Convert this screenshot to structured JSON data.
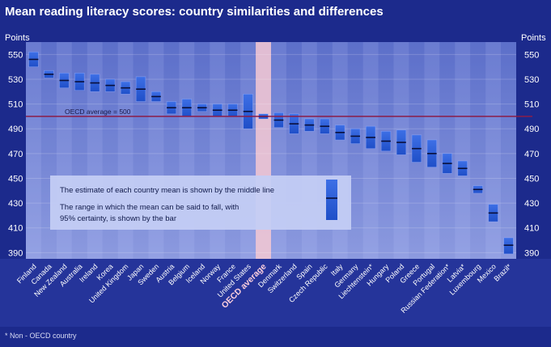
{
  "title": "Mean reading literacy scores: country similarities and differences",
  "footnote": "* Non - OECD country",
  "chart_data": {
    "type": "bar",
    "y_axis_label_left": "Points",
    "y_axis_label_right": "Points",
    "ylim": [
      385,
      560
    ],
    "y_ticks": [
      390,
      410,
      430,
      450,
      470,
      490,
      510,
      530,
      550
    ],
    "reference_line": {
      "label": "OECD average = 500",
      "value": 500
    },
    "highlighted_category": "OECD average",
    "legend": {
      "line1": "The estimate of each country mean is shown by the middle line",
      "line2": "The range in which the mean can be said to fall, with 95% certainty, is shown by the bar"
    },
    "categories": [
      "Finland",
      "Canada",
      "New Zealand",
      "Australia",
      "Ireland",
      "Korea",
      "United Kingdom",
      "Japan",
      "Sweden",
      "Austria",
      "Belgium",
      "Iceland",
      "Norway",
      "France",
      "United States",
      "OECD average",
      "Denmark",
      "Switzerland",
      "Spain",
      "Czech Republic",
      "Italy",
      "Germany",
      "Liechtenstein*",
      "Hungary",
      "Poland",
      "Greece",
      "Portugal",
      "Russian Federation*",
      "Latvia*",
      "Luxembourg",
      "Mexico",
      "Brazil*"
    ],
    "series": [
      {
        "name": "mean",
        "values": [
          546,
          534,
          529,
          528,
          527,
          525,
          523,
          522,
          516,
          507,
          507,
          507,
          505,
          505,
          504,
          500,
          497,
          494,
          493,
          492,
          487,
          484,
          483,
          480,
          479,
          474,
          470,
          462,
          458,
          441,
          422,
          396
        ]
      },
      {
        "name": "lower",
        "values": [
          540,
          531,
          523,
          521,
          520,
          520,
          518,
          512,
          512,
          502,
          500,
          504,
          500,
          500,
          490,
          498,
          491,
          486,
          488,
          486,
          481,
          478,
          474,
          472,
          469,
          463,
          459,
          454,
          452,
          438,
          415,
          389
        ]
      },
      {
        "name": "upper",
        "values": [
          552,
          537,
          535,
          535,
          534,
          530,
          528,
          532,
          520,
          512,
          514,
          510,
          510,
          510,
          518,
          502,
          503,
          502,
          498,
          498,
          493,
          490,
          492,
          488,
          489,
          485,
          481,
          470,
          464,
          444,
          429,
          402
        ]
      }
    ]
  }
}
